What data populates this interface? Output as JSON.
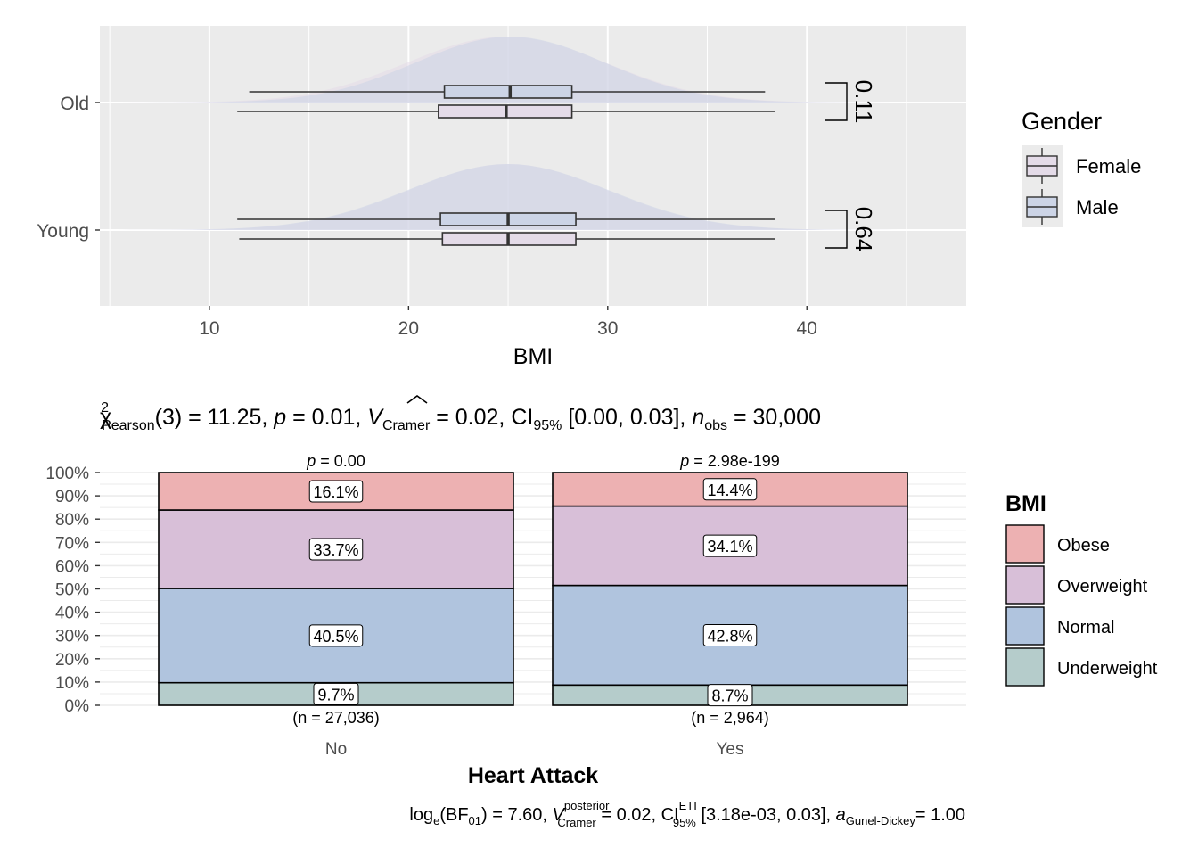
{
  "chart_data": [
    {
      "type": "box",
      "title": "",
      "xlabel": "BMI",
      "ylabel": "",
      "xlim": [
        4.5,
        48
      ],
      "x_ticks": [
        10,
        20,
        30,
        40
      ],
      "x_tick_labels": [
        "10",
        "20",
        "30",
        "40"
      ],
      "categories": [
        "Old",
        "Young"
      ],
      "grid": true,
      "legend": {
        "title": "Gender",
        "position": "right",
        "entries": [
          "Female",
          "Male"
        ]
      },
      "series": [
        {
          "name": "Female",
          "color": "#e4dbe8",
          "boxes": [
            {
              "category": "Old",
              "whisker_low": 11.4,
              "q1": 21.5,
              "median": 24.9,
              "q3": 28.2,
              "whisker_high": 38.4
            },
            {
              "category": "Young",
              "whisker_low": 11.5,
              "q1": 21.7,
              "median": 25.0,
              "q3": 28.4,
              "whisker_high": 38.4
            }
          ]
        },
        {
          "name": "Male",
          "color": "#ccd4e6",
          "boxes": [
            {
              "category": "Old",
              "whisker_low": 12.0,
              "q1": 21.8,
              "median": 25.1,
              "q3": 28.2,
              "whisker_high": 37.9
            },
            {
              "category": "Young",
              "whisker_low": 11.4,
              "q1": 21.6,
              "median": 25.0,
              "q3": 28.4,
              "whisker_high": 38.4
            }
          ]
        }
      ],
      "annotations": [
        {
          "category": "Old",
          "label": "0.11"
        },
        {
          "category": "Young",
          "label": "0.64"
        }
      ]
    },
    {
      "type": "bar",
      "stacked": "percent",
      "subtitle": {
        "chi": "χ",
        "sup2": "2",
        "pearson": "Pearson",
        "df": "(3) = 11.25,",
        "p_sym": "p",
        "p_val": "= 0.01,",
        "v_sym": "V",
        "cramer": "Cramer",
        "v_val": "= 0.02, CI",
        "ci_sub": "95%",
        "ci_val": "[0.00, 0.03],",
        "n_sym": "n",
        "n_sub": "obs",
        "n_val": "= 30,000"
      },
      "xlabel": "Heart Attack",
      "ylabel": "",
      "ylim": [
        0,
        100
      ],
      "y_tick_labels": [
        "0%",
        "10%",
        "20%",
        "30%",
        "40%",
        "50%",
        "60%",
        "70%",
        "80%",
        "90%",
        "100%"
      ],
      "categories": [
        "No",
        "Yes"
      ],
      "column_counts": [
        "(n = 27,036)",
        "(n = 2,964)"
      ],
      "column_pvalues": [
        {
          "p": "p",
          "rest": "= 0.00"
        },
        {
          "p": "p",
          "rest": "= 2.98e-199"
        }
      ],
      "legend": {
        "title": "BMI",
        "position": "right",
        "entries": [
          "Obese",
          "Overweight",
          "Normal",
          "Underweight"
        ]
      },
      "series": [
        {
          "name": "Underweight",
          "color": "#b5cccb",
          "values": [
            9.7,
            8.7
          ],
          "labels": [
            "9.7%",
            "8.7%"
          ]
        },
        {
          "name": "Normal",
          "color": "#b0c4de",
          "values": [
            40.5,
            42.8
          ],
          "labels": [
            "40.5%",
            "42.8%"
          ]
        },
        {
          "name": "Overweight",
          "color": "#d8bfd8",
          "values": [
            33.7,
            34.1
          ],
          "labels": [
            "33.7%",
            "34.1%"
          ]
        },
        {
          "name": "Obese",
          "color": "#edb1b2",
          "values": [
            16.1,
            14.4
          ],
          "labels": [
            "16.1%",
            "14.4%"
          ]
        }
      ],
      "caption": {
        "log": "log",
        "log_sub": "e",
        "bf": "(BF",
        "bf_sub": "01",
        "bf_val": ") = 7.60,",
        "v_sym": "V",
        "v_sup": "posterior",
        "v_sub": "Cramer",
        "v_val": "= 0.02, CI",
        "ci_sup": "ETI",
        "ci_sub": "95%",
        "ci_val": "[3.18e-03, 0.03],",
        "a_sym": "a",
        "a_sub": "Gunel-Dickey",
        "a_val": "= 1.00"
      }
    }
  ]
}
